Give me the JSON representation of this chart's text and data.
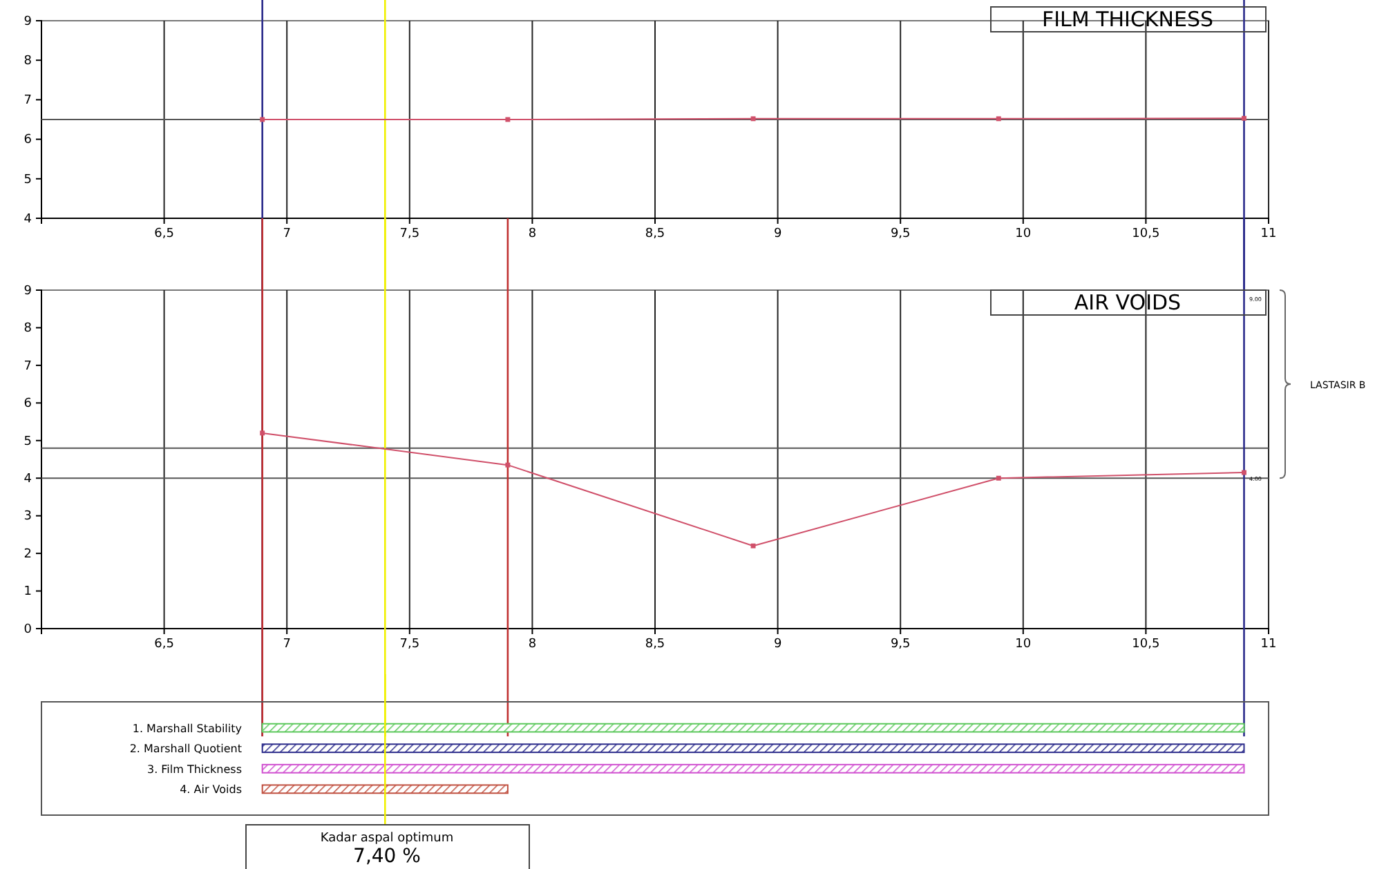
{
  "chart_data": [
    {
      "type": "line",
      "title": "FILM THICKNESS",
      "x": [
        6.9,
        7.9,
        8.9,
        9.9,
        10.9
      ],
      "series": [
        {
          "color": "#d0506a",
          "values": [
            6.5,
            6.5,
            6.52,
            6.52,
            6.53
          ]
        }
      ],
      "xlim": [
        6,
        11
      ],
      "ylim": [
        4,
        9
      ],
      "xticks": [
        {
          "value": 6.5,
          "label": "6,5"
        },
        7,
        {
          "value": 7.5,
          "label": "7,5"
        },
        8,
        {
          "value": 8.5,
          "label": "8,5"
        },
        9,
        {
          "value": 9.5,
          "label": "9,5"
        },
        10,
        {
          "value": 10.5,
          "label": "10,5"
        },
        11
      ],
      "yticks": [
        4,
        5,
        6,
        7,
        8,
        9
      ],
      "grid": "x",
      "marker": "square",
      "ref_lines": [
        {
          "axis": "y",
          "value": 6.5,
          "color": "#555555"
        },
        {
          "axis": "x",
          "value": 6.9,
          "color": "#2a2a8a"
        },
        {
          "axis": "x",
          "value": 7.4,
          "color": "#f0f000"
        },
        {
          "axis": "x",
          "value": 10.9,
          "color": "#2a2a8a"
        }
      ]
    },
    {
      "type": "line",
      "title": "AIR VOIDS",
      "x": [
        6.9,
        7.9,
        8.9,
        9.9,
        10.9
      ],
      "series": [
        {
          "color": "#d0506a",
          "values": [
            5.2,
            4.35,
            2.2,
            4.0,
            4.15
          ]
        }
      ],
      "xlim": [
        6,
        11
      ],
      "ylim": [
        0,
        9
      ],
      "xticks": [
        {
          "value": 6.5,
          "label": "6,5"
        },
        7,
        {
          "value": 7.5,
          "label": "7,5"
        },
        8,
        {
          "value": 8.5,
          "label": "8,5"
        },
        9,
        {
          "value": 9.5,
          "label": "9,5"
        },
        10,
        {
          "value": 10.5,
          "label": "10,5"
        },
        11
      ],
      "yticks": [
        0,
        1,
        2,
        3,
        4,
        5,
        6,
        7,
        8,
        9
      ],
      "grid": "x",
      "marker": "square",
      "ref_lines": [
        {
          "axis": "y",
          "value": 4.8,
          "color": "#555555"
        },
        {
          "axis": "y",
          "value": 4.0,
          "color": "#555555"
        },
        {
          "axis": "x",
          "value": 6.9,
          "color": "#2a2a8a"
        },
        {
          "axis": "x",
          "value": 7.4,
          "color": "#f0f000"
        },
        {
          "axis": "x",
          "value": 10.9,
          "color": "#2a2a8a"
        },
        {
          "axis": "x",
          "value": 6.9,
          "color": "#c03030"
        },
        {
          "axis": "x",
          "value": 7.9,
          "color": "#c03030"
        }
      ],
      "annotations": [
        "9.00",
        "4.00",
        "LASTASIR B"
      ]
    },
    {
      "type": "bar",
      "orientation": "horizontal",
      "categories": [
        "1. Marshall Stability",
        "2. Marshall Quotient",
        "3. Film Thickness",
        "4. Air Voids"
      ],
      "base": [
        6.9,
        6.9,
        6.9,
        6.9
      ],
      "values": [
        4.0,
        4.0,
        4.0,
        1.0
      ],
      "colors": [
        "#5cc85c",
        "#2a2a8a",
        "#d050d0",
        "#c05040"
      ],
      "xlim": [
        6,
        11
      ],
      "tick_labels": "y",
      "ref_lines": [
        {
          "axis": "x",
          "value": 7.4,
          "color": "#f0f000"
        }
      ],
      "annotations": [
        "Kadar aspal optimum",
        "7,40 %"
      ]
    }
  ]
}
